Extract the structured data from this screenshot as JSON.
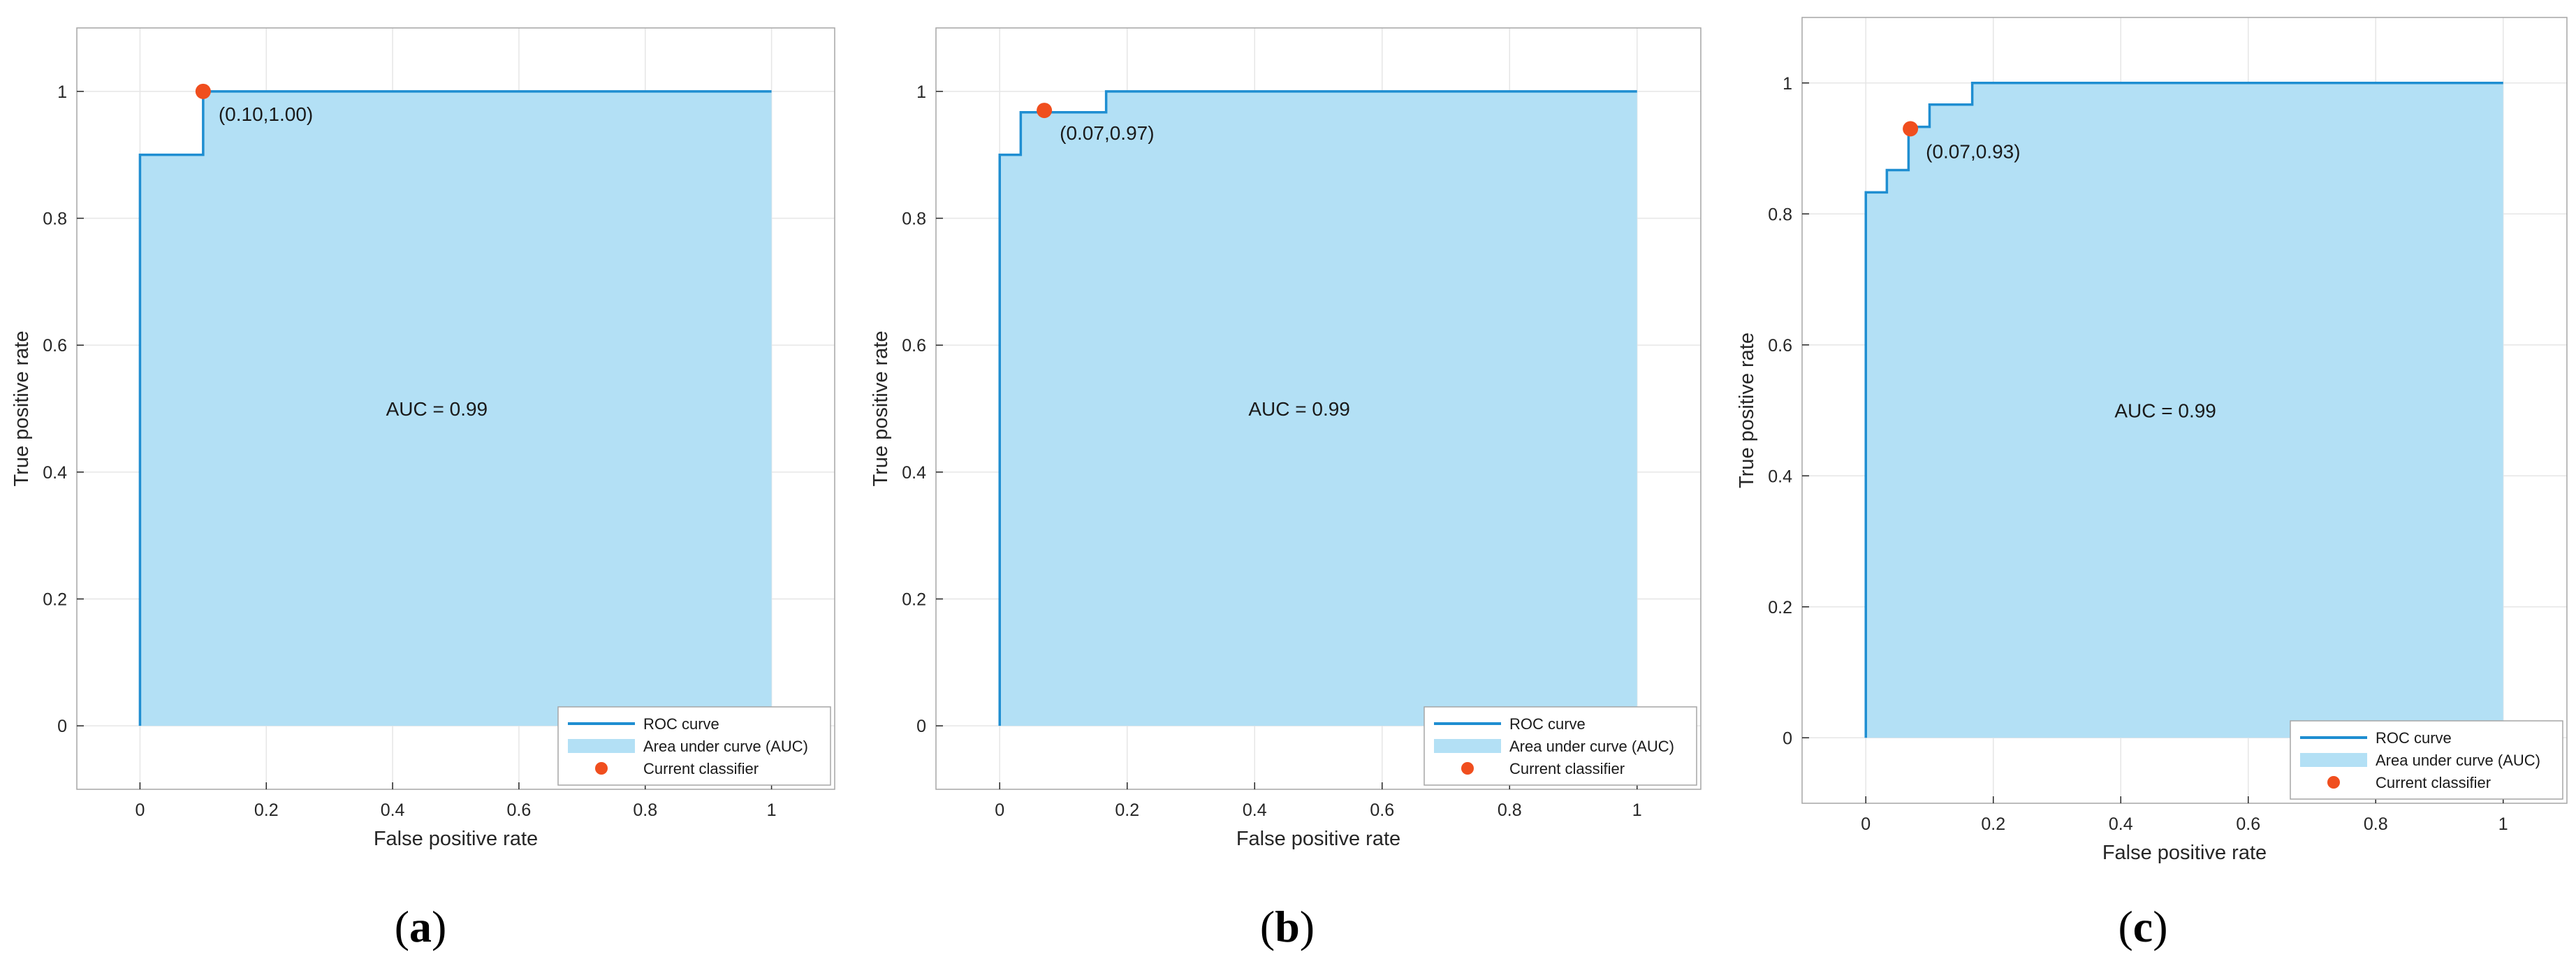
{
  "colors": {
    "roc_line": "#1f8ed1",
    "auc_fill": "#b3e0f5",
    "classifier": "#f04e1e",
    "axis": "#262626",
    "grid": "#e6e6e6",
    "box": "#a6a6a6"
  },
  "legend": {
    "items": [
      "ROC curve",
      "Area under curve (AUC)",
      "Current classifier"
    ],
    "placement": "bottom-right"
  },
  "chart_data": [
    {
      "type": "line",
      "panel": "a",
      "caption_open": "(",
      "caption_letter": "a",
      "caption_close": ")",
      "xlabel": "False positive rate",
      "ylabel": "True positive rate",
      "xlim": [
        -0.1,
        1.1
      ],
      "ylim": [
        -0.1,
        1.1
      ],
      "xticks": [
        0,
        0.2,
        0.4,
        0.6,
        0.8,
        1
      ],
      "yticks": [
        0,
        0.2,
        0.4,
        0.6,
        0.8,
        1
      ],
      "tick_labels_x": [
        "0",
        "0.2",
        "0.4",
        "0.6",
        "0.8",
        "1"
      ],
      "tick_labels_y": [
        "0",
        "0.2",
        "0.4",
        "0.6",
        "0.8",
        "1"
      ],
      "grid": true,
      "roc_x": [
        0,
        0,
        0.1,
        0.1,
        1
      ],
      "roc_y": [
        0,
        0.9,
        0.9,
        1,
        1
      ],
      "classifier_point": [
        0.1,
        1.0
      ],
      "classifier_label": "(0.10,1.00)",
      "auc_label": "AUC = 0.99",
      "auc_label_pos": [
        0.47,
        0.5
      ]
    },
    {
      "type": "line",
      "panel": "b",
      "caption_open": "(",
      "caption_letter": "b",
      "caption_close": ")",
      "xlabel": "False positive rate",
      "ylabel": "True positive rate",
      "xlim": [
        -0.1,
        1.1
      ],
      "ylim": [
        -0.1,
        1.1
      ],
      "xticks": [
        0,
        0.2,
        0.4,
        0.6,
        0.8,
        1
      ],
      "yticks": [
        0,
        0.2,
        0.4,
        0.6,
        0.8,
        1
      ],
      "tick_labels_x": [
        "0",
        "0.2",
        "0.4",
        "0.6",
        "0.8",
        "1"
      ],
      "tick_labels_y": [
        "0",
        "0.2",
        "0.4",
        "0.6",
        "0.8",
        "1"
      ],
      "grid": true,
      "roc_x": [
        0,
        0,
        0.033,
        0.033,
        0.167,
        0.167,
        1
      ],
      "roc_y": [
        0,
        0.9,
        0.9,
        0.967,
        0.967,
        1,
        1
      ],
      "classifier_point": [
        0.07,
        0.97
      ],
      "classifier_label": "(0.07,0.97)",
      "auc_label": "AUC = 0.99",
      "auc_label_pos": [
        0.47,
        0.5
      ]
    },
    {
      "type": "line",
      "panel": "c",
      "caption_open": "(",
      "caption_letter": "c",
      "caption_close": ")",
      "xlabel": "False positive rate",
      "ylabel": "True positive rate",
      "xlim": [
        -0.1,
        1.1
      ],
      "ylim": [
        -0.1,
        1.1
      ],
      "xticks": [
        0,
        0.2,
        0.4,
        0.6,
        0.8,
        1
      ],
      "yticks": [
        0,
        0.2,
        0.4,
        0.6,
        0.8,
        1
      ],
      "tick_labels_x": [
        "0",
        "0.2",
        "0.4",
        "0.6",
        "0.8",
        "1"
      ],
      "tick_labels_y": [
        "0",
        "0.2",
        "0.4",
        "0.6",
        "0.8",
        "1"
      ],
      "grid": true,
      "roc_x": [
        0,
        0,
        0.033,
        0.033,
        0.067,
        0.067,
        0.1,
        0.1,
        0.167,
        0.167,
        1
      ],
      "roc_y": [
        0,
        0.833,
        0.833,
        0.867,
        0.867,
        0.933,
        0.933,
        0.967,
        0.967,
        1,
        1
      ],
      "classifier_point": [
        0.07,
        0.93
      ],
      "classifier_label": "(0.07,0.93)",
      "auc_label": "AUC = 0.99",
      "auc_label_pos": [
        0.47,
        0.5
      ]
    }
  ]
}
